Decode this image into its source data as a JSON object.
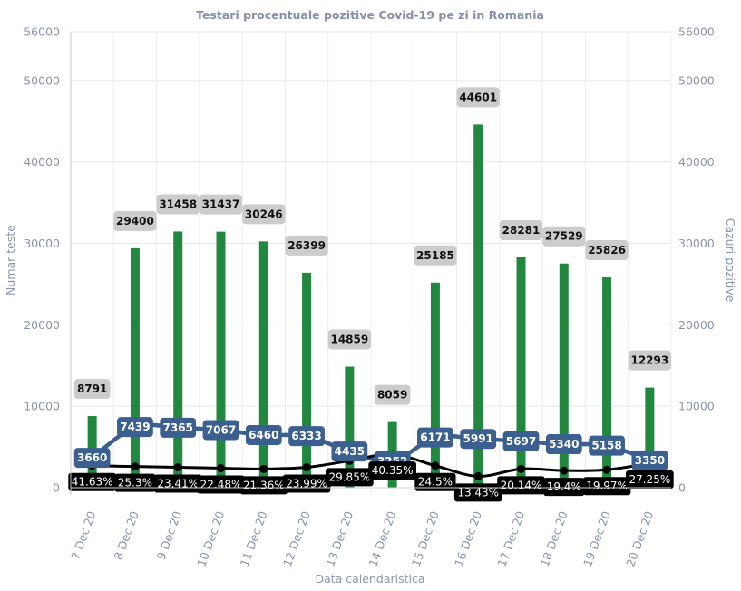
{
  "chart_data": {
    "type": "bar",
    "title": "Testari procentuale pozitive Covid-19 pe zi in Romania",
    "xlabel": "Data calendaristica",
    "ylabel": "Numar teste",
    "ylabel_right": "Cazuri pozitive",
    "ylim": [
      0,
      56000
    ],
    "y_ticks": [
      0,
      10000,
      20000,
      30000,
      40000,
      50000,
      56000
    ],
    "y2_ticks": [
      0,
      10000,
      20000,
      30000,
      40000,
      50000,
      56000
    ],
    "grid": true,
    "categories": [
      "7 Dec 20",
      "8 Dec 20",
      "9 Dec 20",
      "10 Dec 20",
      "11 Dec 20",
      "12 Dec 20",
      "13 Dec 20",
      "14 Dec 20",
      "15 Dec 20",
      "16 Dec 20",
      "17 Dec 20",
      "18 Dec 20",
      "19 Dec 20",
      "20 Dec 20"
    ],
    "series": [
      {
        "kind": "bar",
        "axis": "left",
        "values": [
          8791,
          29400,
          31458,
          31437,
          30246,
          26399,
          14859,
          8059,
          25185,
          44601,
          28281,
          27529,
          25826,
          12293
        ],
        "labels": [
          "8791",
          "29400",
          "31458",
          "31437",
          "30246",
          "26399",
          "14859",
          "8059",
          "25185",
          "44601",
          "28281",
          "27529",
          "25826",
          "12293"
        ],
        "color": "#22883f"
      },
      {
        "kind": "line",
        "axis": "right",
        "values": [
          3660,
          7439,
          7365,
          7067,
          6460,
          6333,
          4435,
          3252,
          6171,
          5991,
          5697,
          5340,
          5158,
          3350
        ],
        "labels": [
          "3660",
          "7439",
          "7365",
          "7067",
          "6460",
          "6333",
          "4435",
          "3252",
          "6171",
          "5991",
          "5697",
          "5340",
          "5158",
          "3350"
        ],
        "color": "#3b5f8f"
      },
      {
        "kind": "line",
        "axis": "right",
        "plot_values": [
          2700,
          2600,
          2500,
          2400,
          2300,
          2500,
          3300,
          4100,
          2700,
          1400,
          2300,
          2100,
          2200,
          3000
        ],
        "labels": [
          "41.63%",
          "25.3%",
          "23.41%",
          "22.48%",
          "21.36%",
          "23.99%",
          "29.85%",
          "40.35%",
          "24.5%",
          "13.43%",
          "20.14%",
          "19.4%",
          "19.97%",
          "27.25%"
        ],
        "color": "#000000"
      }
    ]
  }
}
